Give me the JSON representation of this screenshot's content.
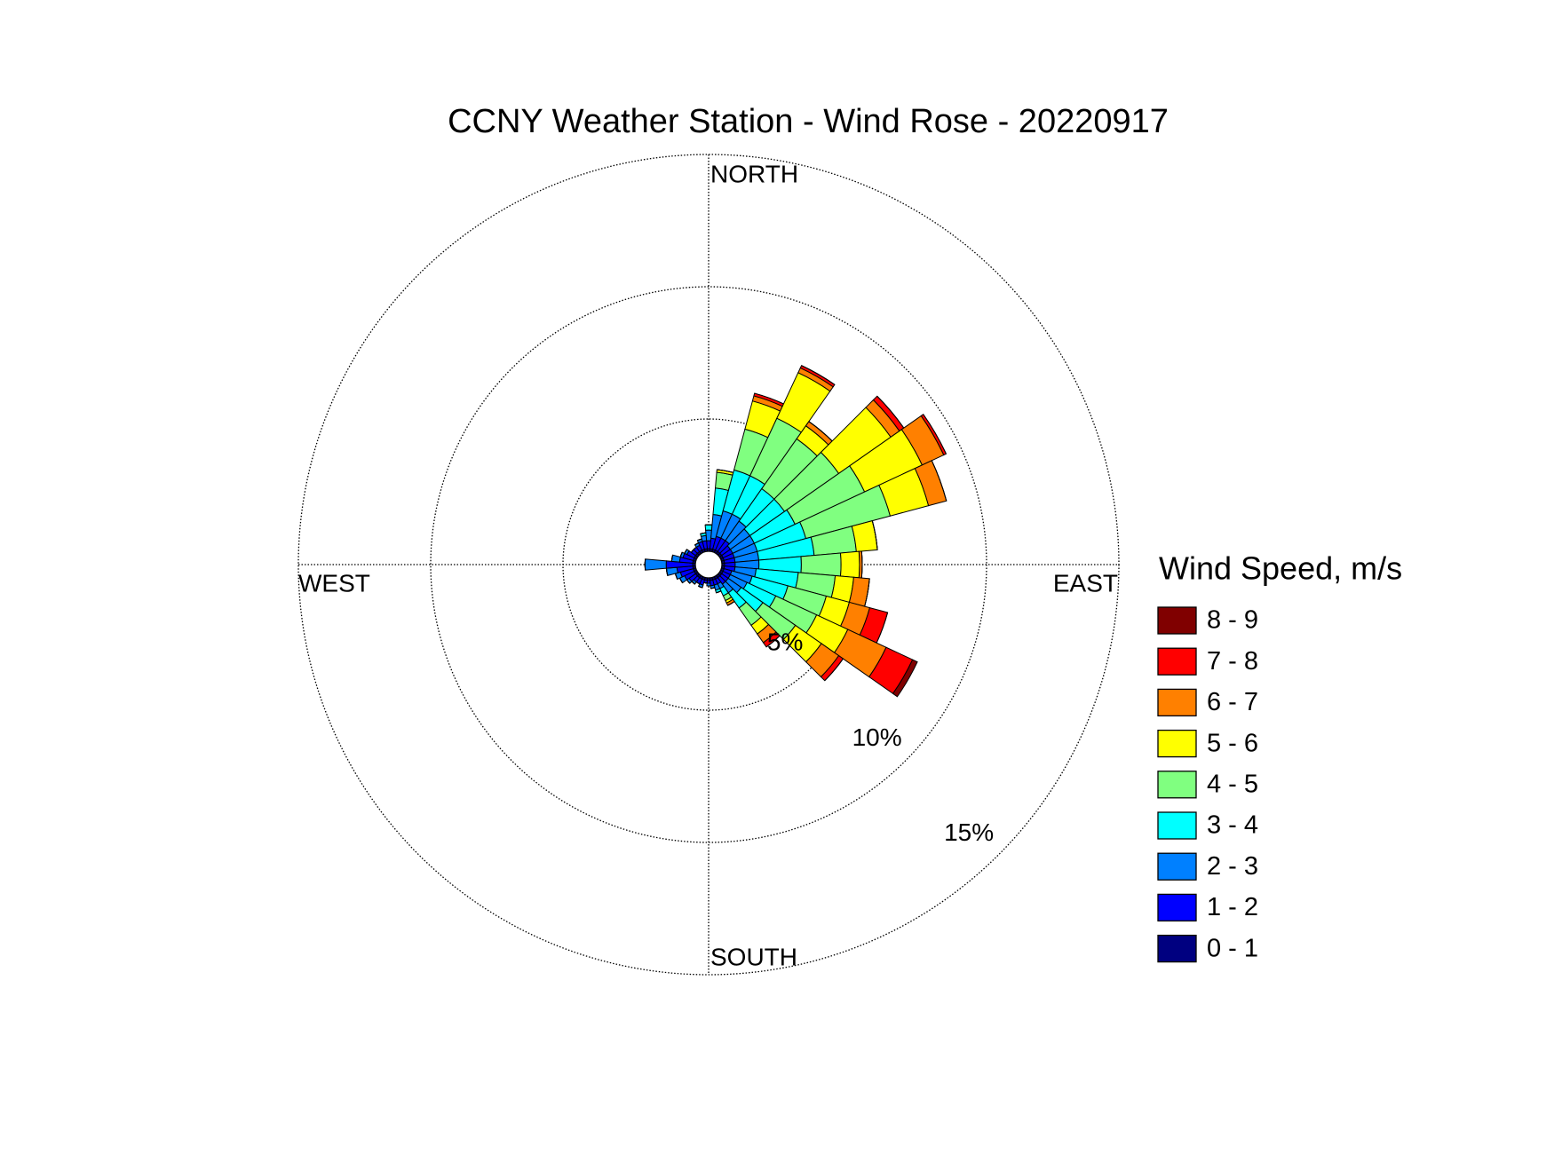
{
  "chart_data": {
    "type": "windrose",
    "title": "CCNY Weather Station - Wind Rose - 20220917",
    "direction_labels": {
      "north": "NORTH",
      "east": "EAST",
      "south": "SOUTH",
      "west": "WEST"
    },
    "x": [
      0,
      10,
      20,
      30,
      40,
      50,
      60,
      70,
      80,
      90,
      100,
      110,
      120,
      130,
      140,
      150,
      160,
      170,
      180,
      190,
      200,
      210,
      220,
      230,
      240,
      250,
      260,
      270,
      280,
      290,
      300,
      310,
      320,
      330,
      340,
      350
    ],
    "rlim": [
      0,
      15
    ],
    "rticks": [
      {
        "value": 5,
        "label": "5%"
      },
      {
        "value": 10,
        "label": "10%"
      },
      {
        "value": 15,
        "label": "15%"
      }
    ],
    "legend_title": "Wind Speed, m/s",
    "series": [
      {
        "name": "0 - 1",
        "color": "#000080",
        "values": [
          0.1,
          0.1,
          0.1,
          0.1,
          0.1,
          0.1,
          0.1,
          0.1,
          0.1,
          0.1,
          0.1,
          0.1,
          0.1,
          0.1,
          0.1,
          0.1,
          0.1,
          0.1,
          0.1,
          0.1,
          0.1,
          0.1,
          0.1,
          0.1,
          0.1,
          0.1,
          0.1,
          0.1,
          0.1,
          0.1,
          0.1,
          0.1,
          0.1,
          0.1,
          0.1,
          0.1
        ]
      },
      {
        "name": "1 - 2",
        "color": "#0000ff",
        "values": [
          0.3,
          0.4,
          0.5,
          0.5,
          0.5,
          0.4,
          0.4,
          0.4,
          0.4,
          0.4,
          0.4,
          0.3,
          0.3,
          0.3,
          0.3,
          0.2,
          0.2,
          0.2,
          0.1,
          0.1,
          0.2,
          0.2,
          0.2,
          0.3,
          0.4,
          0.5,
          0.6,
          1.0,
          0.5,
          0.4,
          0.3,
          0.2,
          0.2,
          0.2,
          0.3,
          0.3
        ]
      },
      {
        "name": "2 - 3",
        "color": "#0080ff",
        "values": [
          0.4,
          0.9,
          1.0,
          1.0,
          0.9,
          0.9,
          0.9,
          0.9,
          0.9,
          0.9,
          0.8,
          0.8,
          0.7,
          0.6,
          0.4,
          0.2,
          0.2,
          0.1,
          0.1,
          0,
          0.1,
          0,
          0.1,
          0.1,
          0.2,
          0.2,
          0.4,
          0.8,
          0.3,
          0.1,
          0.1,
          0,
          0,
          0.1,
          0.1,
          0.2
        ]
      },
      {
        "name": "3 - 4",
        "color": "#00ffff",
        "values": [
          0.2,
          1.0,
          1.6,
          1.6,
          1.5,
          1.6,
          1.7,
          1.9,
          2.1,
          1.6,
          1.6,
          1.4,
          1.2,
          1.0,
          0.7,
          0.3,
          0.1,
          0,
          0,
          0,
          0,
          0,
          0,
          0,
          0,
          0,
          0,
          0,
          0,
          0,
          0,
          0,
          0,
          0,
          0,
          0.1
        ]
      },
      {
        "name": "4 - 5",
        "color": "#80ff80",
        "values": [
          0,
          0.6,
          1.6,
          2.4,
          2.3,
          2.5,
          2.9,
          3.3,
          1.6,
          1.5,
          1.4,
          1.5,
          1.7,
          1.5,
          0.8,
          0.2,
          0,
          0,
          0,
          0,
          0,
          0,
          0,
          0,
          0,
          0,
          0,
          0,
          0,
          0,
          0,
          0,
          0,
          0,
          0,
          0
        ]
      },
      {
        "name": "5 - 6",
        "color": "#ffff00",
        "values": [
          0,
          0.1,
          1.1,
          1.9,
          0.6,
          2.4,
          2.4,
          1.5,
          0.8,
          0.7,
          0.7,
          0.9,
          1.3,
          1.2,
          0.4,
          0.1,
          0,
          0,
          0,
          0,
          0,
          0,
          0,
          0,
          0,
          0,
          0,
          0,
          0,
          0,
          0,
          0,
          0,
          0,
          0,
          0
        ]
      },
      {
        "name": "6 - 7",
        "color": "#ff8000",
        "values": [
          0,
          0,
          0.2,
          0.2,
          0.2,
          0.4,
          0.9,
          0.7,
          0,
          0.1,
          0.6,
          0.8,
          1.6,
          0.8,
          0.4,
          0.1,
          0,
          0,
          0,
          0,
          0,
          0,
          0,
          0,
          0,
          0,
          0,
          0,
          0,
          0,
          0,
          0,
          0,
          0,
          0,
          0
        ]
      },
      {
        "name": "7 - 8",
        "color": "#ff0000",
        "values": [
          0,
          0,
          0.1,
          0.1,
          0,
          0.2,
          0.1,
          0,
          0,
          0,
          0,
          0.7,
          1.1,
          0.2,
          0.2,
          0,
          0,
          0,
          0,
          0,
          0,
          0,
          0,
          0,
          0,
          0,
          0,
          0,
          0,
          0,
          0,
          0,
          0,
          0,
          0,
          0
        ]
      },
      {
        "name": "8 - 9",
        "color": "#800000",
        "values": [
          0,
          0,
          0,
          0,
          0,
          0,
          0,
          0,
          0,
          0,
          0,
          0,
          0.2,
          0,
          0,
          0,
          0,
          0,
          0,
          0,
          0,
          0,
          0,
          0,
          0,
          0,
          0,
          0,
          0,
          0,
          0,
          0,
          0,
          0,
          0,
          0
        ]
      }
    ]
  }
}
